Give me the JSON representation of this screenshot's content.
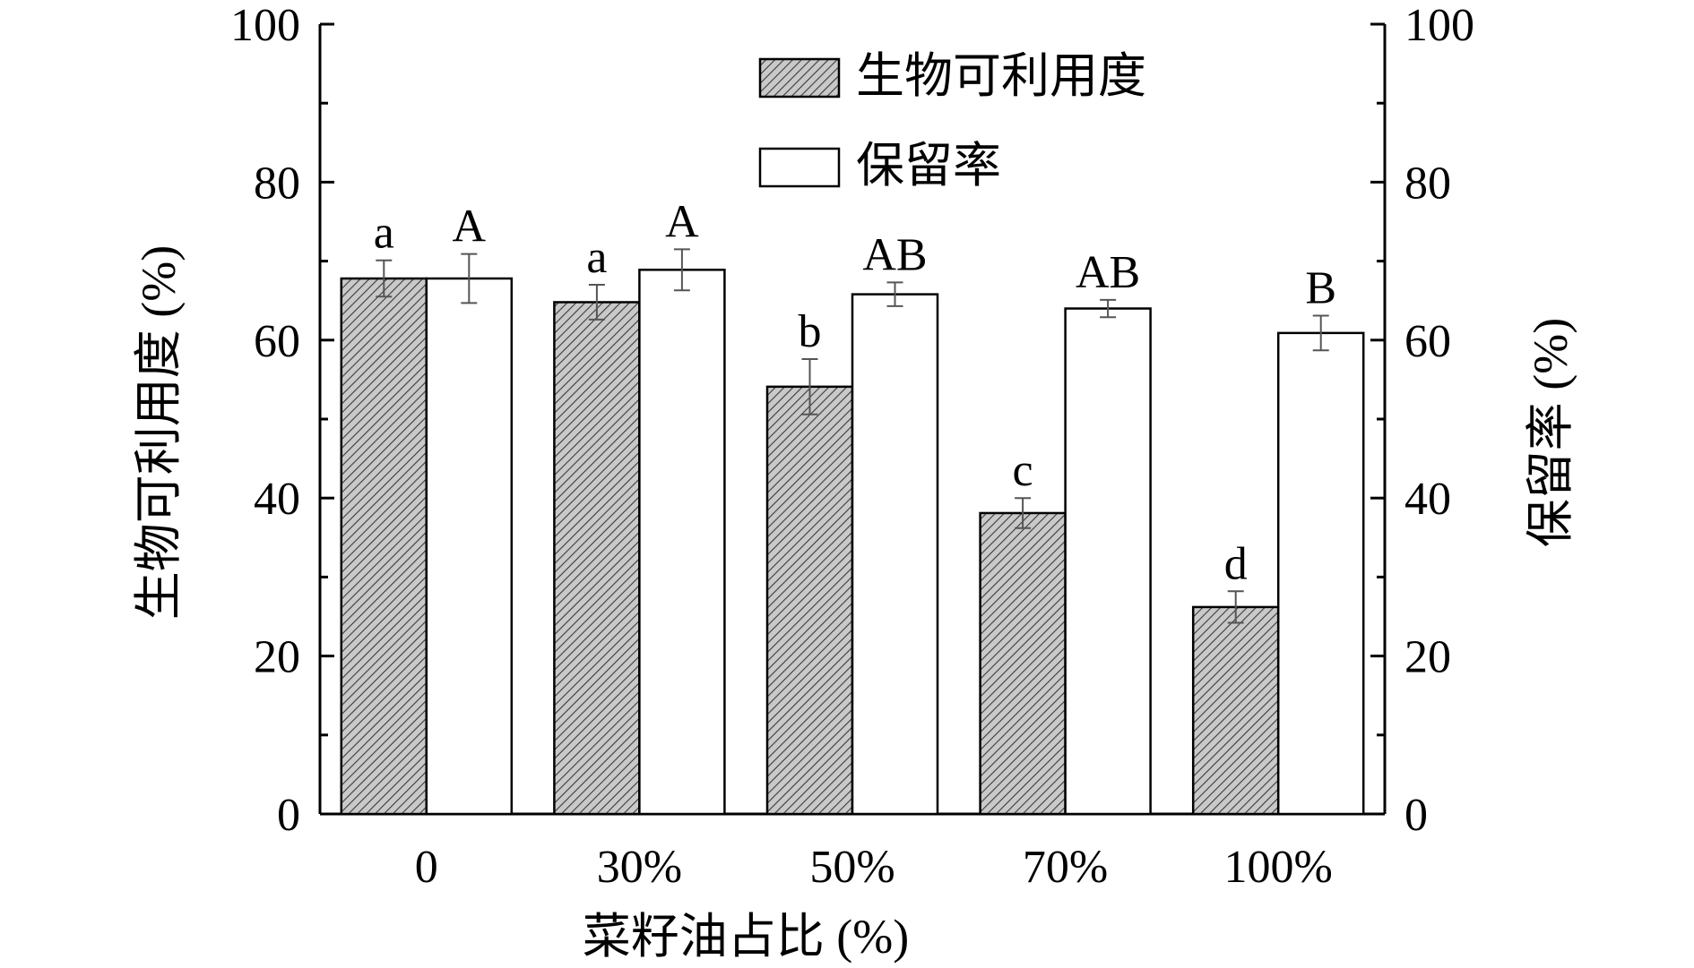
{
  "chart_data": {
    "type": "bar",
    "categories": [
      "0",
      "30%",
      "50%",
      "70%",
      "100%"
    ],
    "xlabel": "菜籽油占比 (%)",
    "ylabel_left": "生物可利用度 (%)",
    "ylabel_right": "保留率 (%)",
    "ylim": [
      0,
      100
    ],
    "yticks": [
      "0",
      "20",
      "40",
      "60",
      "80",
      "100"
    ],
    "legend_position": "top-center",
    "series": [
      {
        "name": "生物可利用度",
        "pattern": "hatched",
        "color": "#c8c8c8",
        "values": [
          67.8,
          64.8,
          54.1,
          38.1,
          26.2
        ],
        "errors": [
          2.3,
          2.2,
          3.5,
          1.9,
          2.0
        ],
        "labels": [
          "a",
          "a",
          "b",
          "c",
          "d"
        ]
      },
      {
        "name": "保留率",
        "pattern": "solid",
        "color": "#ffffff",
        "values": [
          67.8,
          68.9,
          65.8,
          64.0,
          60.9
        ],
        "errors": [
          3.1,
          2.6,
          1.5,
          1.1,
          2.2
        ],
        "labels": [
          "A",
          "A",
          "AB",
          "AB",
          "B"
        ]
      }
    ]
  }
}
